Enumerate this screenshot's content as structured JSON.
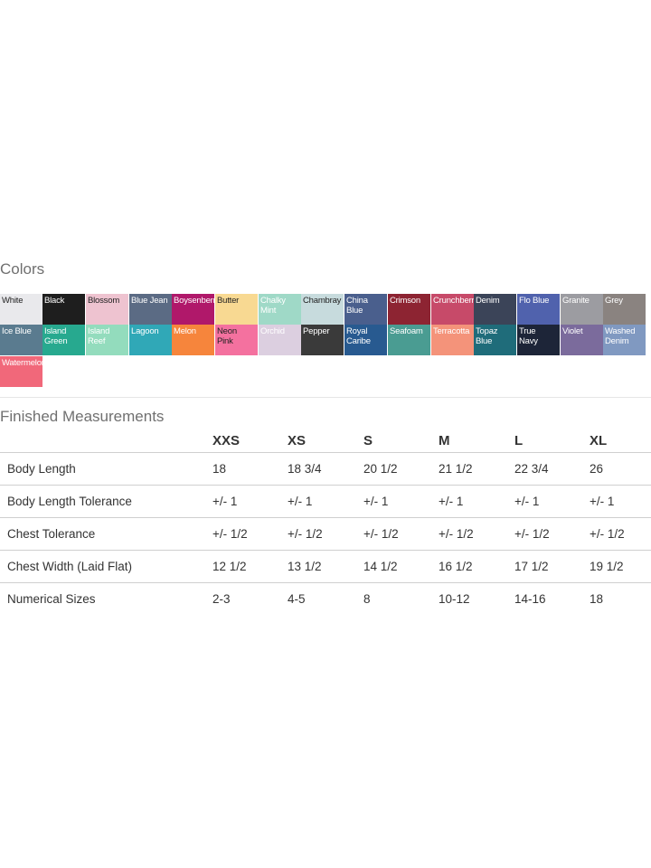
{
  "colors_section": {
    "title": "Colors",
    "swatches": [
      {
        "label": "White",
        "color": "#e9e9ec",
        "text": "#222222"
      },
      {
        "label": "Black",
        "color": "#1e1e1e",
        "text": "#ffffff"
      },
      {
        "label": "Blossom",
        "color": "#eec3d0",
        "text": "#222222"
      },
      {
        "label": "Blue Jean",
        "color": "#5b6b84",
        "text": "#ffffff"
      },
      {
        "label": "Boysenberry",
        "color": "#b0186a",
        "text": "#ffffff"
      },
      {
        "label": "Butter",
        "color": "#f8d992",
        "text": "#222222"
      },
      {
        "label": "Chalky\nMint",
        "color": "#9fd9c7",
        "text": "#ffffff"
      },
      {
        "label": "Chambray",
        "color": "#c7dbdd",
        "text": "#222222"
      },
      {
        "label": "China\nBlue",
        "color": "#4a5f8d",
        "text": "#ffffff"
      },
      {
        "label": "Crimson",
        "color": "#8d2432",
        "text": "#ffffff"
      },
      {
        "label": "Crunchberry",
        "color": "#c74a69",
        "text": "#ffffff"
      },
      {
        "label": "Denim",
        "color": "#3b4458",
        "text": "#ffffff"
      },
      {
        "label": "Flo Blue",
        "color": "#5062ad",
        "text": "#ffffff"
      },
      {
        "label": "Granite",
        "color": "#9c9ca1",
        "text": "#ffffff"
      },
      {
        "label": "Grey",
        "color": "#8a8380",
        "text": "#ffffff"
      },
      {
        "label": "Ice Blue",
        "color": "#5a7b8f",
        "text": "#ffffff"
      },
      {
        "label": "Island\nGreen",
        "color": "#27a98f",
        "text": "#ffffff"
      },
      {
        "label": "Island\nReef",
        "color": "#93dcbd",
        "text": "#ffffff"
      },
      {
        "label": "Lagoon",
        "color": "#30a8b7",
        "text": "#ffffff"
      },
      {
        "label": "Melon",
        "color": "#f6853c",
        "text": "#ffffff"
      },
      {
        "label": "Neon\nPink",
        "color": "#f4719f",
        "text": "#222222"
      },
      {
        "label": "Orchid",
        "color": "#dccfe0",
        "text": "#ffffff"
      },
      {
        "label": "Pepper",
        "color": "#3a3a3a",
        "text": "#ffffff"
      },
      {
        "label": "Royal\nCaribe",
        "color": "#285a90",
        "text": "#ffffff"
      },
      {
        "label": "Seafoam",
        "color": "#4a9c92",
        "text": "#ffffff"
      },
      {
        "label": "Terracotta",
        "color": "#f4937a",
        "text": "#ffffff"
      },
      {
        "label": "Topaz\nBlue",
        "color": "#1f6c7a",
        "text": "#ffffff"
      },
      {
        "label": "True\nNavy",
        "color": "#1d2538",
        "text": "#ffffff"
      },
      {
        "label": "Violet",
        "color": "#7b6b9c",
        "text": "#ffffff"
      },
      {
        "label": "Washed\nDenim",
        "color": "#8099c1",
        "text": "#ffffff"
      },
      {
        "label": "Watermelon",
        "color": "#f1687a",
        "text": "#ffffff"
      }
    ]
  },
  "measurements": {
    "title": "Finished Measurements",
    "sizes": [
      "XXS",
      "XS",
      "S",
      "M",
      "L",
      "XL"
    ],
    "rows": [
      {
        "label": "Body Length",
        "values": [
          "18",
          "18 3/4",
          "20 1/2",
          "21 1/2",
          "22 3/4",
          "26"
        ]
      },
      {
        "label": "Body Length Tolerance",
        "values": [
          "+/- 1",
          "+/- 1",
          "+/- 1",
          "+/- 1",
          "+/- 1",
          "+/- 1"
        ]
      },
      {
        "label": "Chest Tolerance",
        "values": [
          "+/- 1/2",
          "+/- 1/2",
          "+/- 1/2",
          "+/- 1/2",
          "+/- 1/2",
          "+/- 1/2"
        ]
      },
      {
        "label": "Chest Width (Laid Flat)",
        "values": [
          "12 1/2",
          "13 1/2",
          "14 1/2",
          "16 1/2",
          "17 1/2",
          "19 1/2"
        ]
      },
      {
        "label": "Numerical Sizes",
        "values": [
          "2-3",
          "4-5",
          "8",
          "10-12",
          "14-16",
          "18"
        ]
      }
    ]
  }
}
